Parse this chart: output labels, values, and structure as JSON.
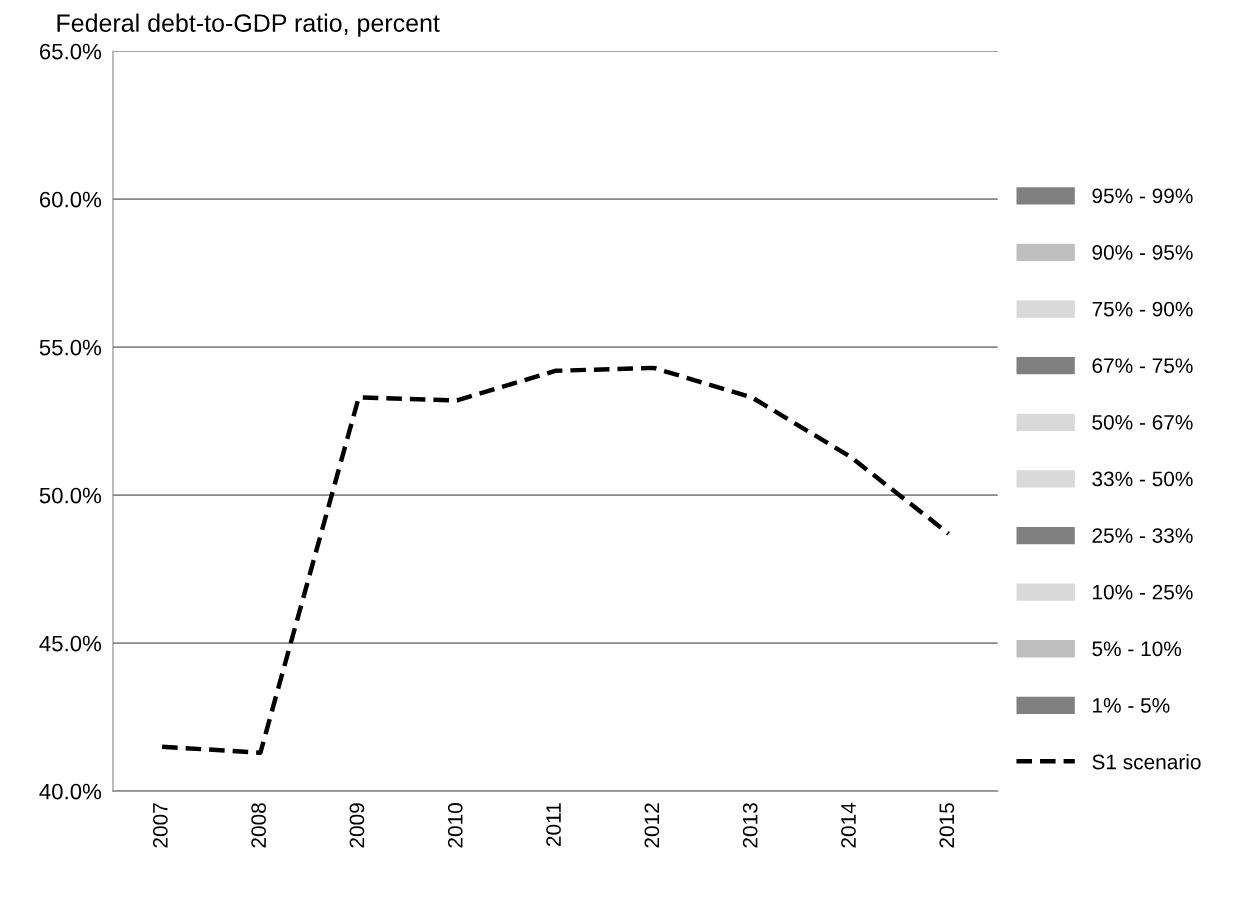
{
  "chart_data": {
    "type": "line",
    "title": "Federal debt-to-GDP ratio, percent",
    "categories": [
      "2007",
      "2008",
      "2009",
      "2010",
      "2011",
      "2012",
      "2013",
      "2014",
      "2015"
    ],
    "series": [
      {
        "name": "95% - 99%",
        "type": "area",
        "color": "#808080",
        "values": [
          null,
          null,
          null,
          null,
          null,
          null,
          null,
          null,
          null
        ]
      },
      {
        "name": "90% - 95%",
        "type": "area",
        "color": "#bfbfbf",
        "values": [
          null,
          null,
          null,
          null,
          null,
          null,
          null,
          null,
          null
        ]
      },
      {
        "name": "75% - 90%",
        "type": "area",
        "color": "#d9d9d9",
        "values": [
          null,
          null,
          null,
          null,
          null,
          null,
          null,
          null,
          null
        ]
      },
      {
        "name": "67% - 75%",
        "type": "area",
        "color": "#808080",
        "values": [
          null,
          null,
          null,
          null,
          null,
          null,
          null,
          null,
          null
        ]
      },
      {
        "name": "50% - 67%",
        "type": "area",
        "color": "#d9d9d9",
        "values": [
          null,
          null,
          null,
          null,
          null,
          null,
          null,
          null,
          null
        ]
      },
      {
        "name": "33% - 50%",
        "type": "area",
        "color": "#d9d9d9",
        "values": [
          null,
          null,
          null,
          null,
          null,
          null,
          null,
          null,
          null
        ]
      },
      {
        "name": "25% - 33%",
        "type": "area",
        "color": "#808080",
        "values": [
          null,
          null,
          null,
          null,
          null,
          null,
          null,
          null,
          null
        ]
      },
      {
        "name": "10% - 25%",
        "type": "area",
        "color": "#d9d9d9",
        "values": [
          null,
          null,
          null,
          null,
          null,
          null,
          null,
          null,
          null
        ]
      },
      {
        "name": "5% - 10%",
        "type": "area",
        "color": "#bfbfbf",
        "values": [
          null,
          null,
          null,
          null,
          null,
          null,
          null,
          null,
          null
        ]
      },
      {
        "name": "1% - 5%",
        "type": "area",
        "color": "#808080",
        "values": [
          null,
          null,
          null,
          null,
          null,
          null,
          null,
          null,
          null
        ]
      },
      {
        "name": "S1 scenario",
        "color": "#000000",
        "line_style": "dashed",
        "values": [
          41.5,
          41.3,
          53.3,
          53.2,
          54.2,
          54.3,
          53.3,
          51.3,
          48.7
        ]
      }
    ],
    "ylim": [
      40,
      65
    ],
    "yticks": [
      {
        "value": 40,
        "label": "40.0%"
      },
      {
        "value": 45,
        "label": "45.0%"
      },
      {
        "value": 50,
        "label": "50.0%"
      },
      {
        "value": 55,
        "label": "55.0%"
      },
      {
        "value": 60,
        "label": "60.0%"
      },
      {
        "value": 65,
        "label": "65.0%"
      }
    ],
    "grid": "y",
    "legend": "right"
  }
}
